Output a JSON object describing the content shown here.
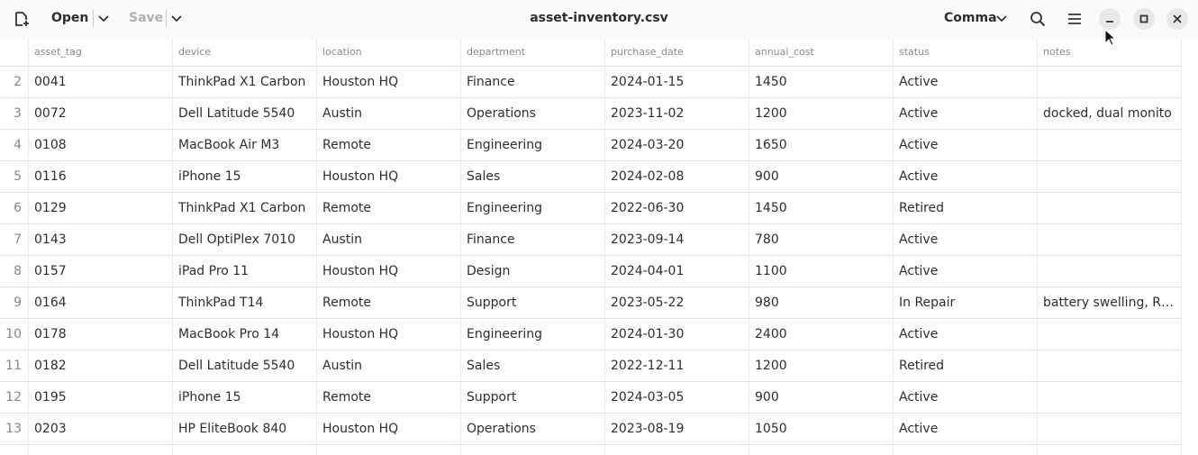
{
  "toolbar": {
    "open": "Open",
    "save": "Save",
    "title": "asset-inventory.csv",
    "delimiter": "Comma"
  },
  "table": {
    "columns": [
      "asset_tag",
      "device",
      "location",
      "department",
      "purchase_date",
      "annual_cost",
      "status",
      "notes"
    ],
    "rows": [
      {
        "number": "2",
        "cells": [
          "0041",
          "ThinkPad X1 Carbon",
          "Houston HQ",
          "Finance",
          "2024-01-15",
          "1450",
          "Active",
          null
        ]
      },
      {
        "number": "3",
        "cells": [
          "0072",
          "Dell Latitude 5540",
          "Austin",
          "Operations",
          "2023-11-02",
          "1200",
          "Active",
          "docked, dual monitor"
        ]
      },
      {
        "number": "4",
        "cells": [
          "0108",
          "MacBook Air M3",
          "Remote",
          "Engineering",
          "2024-03-20",
          "1650",
          "Active",
          null
        ]
      },
      {
        "number": "5",
        "cells": [
          "0116",
          "iPhone 15",
          "Houston HQ",
          "Sales",
          "2024-02-08",
          "900",
          "Active",
          null
        ]
      },
      {
        "number": "6",
        "cells": [
          "0129",
          "ThinkPad X1 Carbon",
          "Remote",
          "Engineering",
          "2022-06-30",
          "1450",
          "Retired",
          null
        ]
      },
      {
        "number": "7",
        "cells": [
          "0143",
          "Dell OptiPlex 7010",
          "Austin",
          "Finance",
          "2023-09-14",
          "780",
          "Active",
          null
        ]
      },
      {
        "number": "8",
        "cells": [
          "0157",
          "iPad Pro 11",
          "Houston HQ",
          "Design",
          "2024-04-01",
          "1100",
          "Active",
          null
        ]
      },
      {
        "number": "9",
        "cells": [
          "0164",
          "ThinkPad T14",
          "Remote",
          "Support",
          "2023-05-22",
          "980",
          "In Repair",
          "battery swelling, R…"
        ]
      },
      {
        "number": "10",
        "cells": [
          "0178",
          "MacBook Pro 14",
          "Houston HQ",
          "Engineering",
          "2024-01-30",
          "2400",
          "Active",
          null
        ]
      },
      {
        "number": "11",
        "cells": [
          "0182",
          "Dell Latitude 5540",
          "Austin",
          "Sales",
          "2022-12-11",
          "1200",
          "Retired",
          null
        ]
      },
      {
        "number": "12",
        "cells": [
          "0195",
          "iPhone 15",
          "Remote",
          "Support",
          "2024-03-05",
          "900",
          "Active",
          null
        ]
      },
      {
        "number": "13",
        "cells": [
          "0203",
          "HP EliteBook 840",
          "Houston HQ",
          "Operations",
          "2023-08-19",
          "1050",
          "Active",
          null
        ]
      }
    ]
  }
}
